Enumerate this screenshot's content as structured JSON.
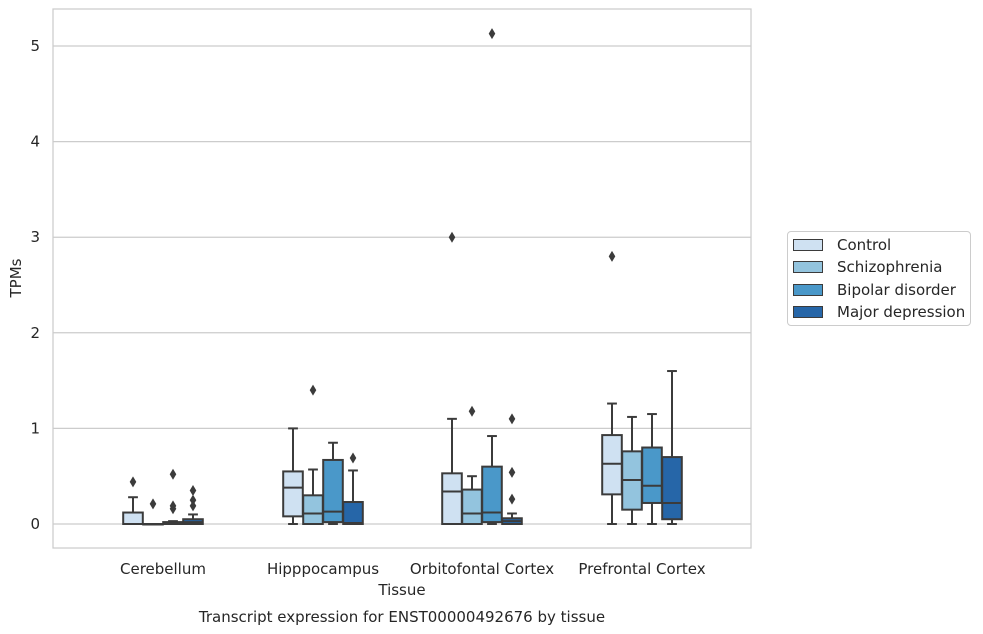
{
  "chart_data": {
    "type": "box",
    "title": "",
    "caption": "Transcript expression for ENST00000492676 by tissue",
    "xlabel": "Tissue",
    "ylabel": "TPMs",
    "ylim": [
      -0.25,
      5.4
    ],
    "yticks": [
      0,
      1,
      2,
      3,
      4,
      5
    ],
    "grid": "horizontal",
    "legend_position": "right",
    "categories": [
      "Cerebellum",
      "Hipppocampus",
      "Orbitofontal Cortex",
      "Prefrontal Cortex"
    ],
    "series": [
      {
        "name": "Control",
        "color": "#cfe1f2",
        "boxes": [
          {
            "whislo": 0,
            "q1": 0,
            "med": 0,
            "q3": 0.12,
            "whishi": 0.28,
            "fliers": [
              0.44
            ]
          },
          {
            "whislo": 0,
            "q1": 0.08,
            "med": 0.38,
            "q3": 0.55,
            "whishi": 1.0,
            "fliers": []
          },
          {
            "whislo": 0,
            "q1": 0,
            "med": 0.34,
            "q3": 0.53,
            "whishi": 1.1,
            "fliers": [
              3.0
            ]
          },
          {
            "whislo": 0,
            "q1": 0.31,
            "med": 0.63,
            "q3": 0.93,
            "whishi": 1.26,
            "fliers": [
              2.8
            ]
          }
        ]
      },
      {
        "name": "Schizophrenia",
        "color": "#93c4de",
        "boxes": [
          {
            "whislo": 0,
            "q1": 0,
            "med": 0,
            "q3": 0,
            "whishi": 0,
            "fliers": [
              0.21
            ]
          },
          {
            "whislo": 0,
            "q1": 0,
            "med": 0.11,
            "q3": 0.3,
            "whishi": 0.57,
            "fliers": [
              1.4
            ]
          },
          {
            "whislo": 0,
            "q1": 0,
            "med": 0.11,
            "q3": 0.36,
            "whishi": 0.5,
            "fliers": [
              1.18
            ]
          },
          {
            "whislo": 0,
            "q1": 0.15,
            "med": 0.46,
            "q3": 0.76,
            "whishi": 1.12,
            "fliers": []
          }
        ]
      },
      {
        "name": "Bipolar disorder",
        "color": "#4a98c9",
        "boxes": [
          {
            "whislo": 0,
            "q1": 0,
            "med": 0.01,
            "q3": 0.02,
            "whishi": 0.03,
            "fliers": [
              0.52,
              0.19,
              0.16
            ]
          },
          {
            "whislo": 0,
            "q1": 0.02,
            "med": 0.13,
            "q3": 0.67,
            "whishi": 0.85,
            "fliers": []
          },
          {
            "whislo": 0,
            "q1": 0.02,
            "med": 0.12,
            "q3": 0.6,
            "whishi": 0.92,
            "fliers": [
              5.13
            ]
          },
          {
            "whislo": 0,
            "q1": 0.22,
            "med": 0.4,
            "q3": 0.8,
            "whishi": 1.15,
            "fliers": []
          }
        ]
      },
      {
        "name": "Major depression",
        "color": "#2666a8",
        "boxes": [
          {
            "whislo": 0,
            "q1": 0,
            "med": 0.02,
            "q3": 0.05,
            "whishi": 0.1,
            "fliers": [
              0.35,
              0.25,
              0.19
            ]
          },
          {
            "whislo": 0,
            "q1": 0,
            "med": 0.01,
            "q3": 0.23,
            "whishi": 0.56,
            "fliers": [
              0.69
            ]
          },
          {
            "whislo": 0,
            "q1": 0,
            "med": 0.03,
            "q3": 0.06,
            "whishi": 0.11,
            "fliers": [
              1.1,
              0.54,
              0.26
            ]
          },
          {
            "whislo": 0,
            "q1": 0.05,
            "med": 0.22,
            "q3": 0.7,
            "whishi": 1.6,
            "fliers": []
          }
        ]
      }
    ]
  }
}
